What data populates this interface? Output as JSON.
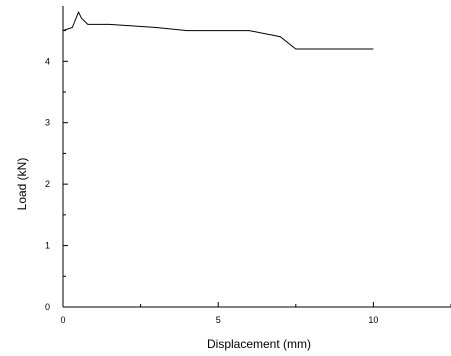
{
  "chart_data": {
    "type": "line",
    "title": "",
    "xlabel": "Displacement (mm)",
    "ylabel": "Load (kN)",
    "xlim": [
      0,
      12.5
    ],
    "ylim": [
      0,
      4.9
    ],
    "x_ticks": [
      0,
      5,
      10
    ],
    "y_ticks": [
      0,
      1,
      2,
      3,
      4
    ],
    "grid": false,
    "legend": "none",
    "line_color": "#000000",
    "series": [
      {
        "x": [
          0,
          0.3,
          0.5,
          0.6,
          0.8,
          1.5,
          3.0,
          4.0,
          6.0,
          7.0,
          7.5,
          10.0
        ],
        "y": [
          4.5,
          4.55,
          4.8,
          4.7,
          4.6,
          4.6,
          4.55,
          4.5,
          4.5,
          4.4,
          4.2,
          4.2
        ]
      }
    ]
  }
}
